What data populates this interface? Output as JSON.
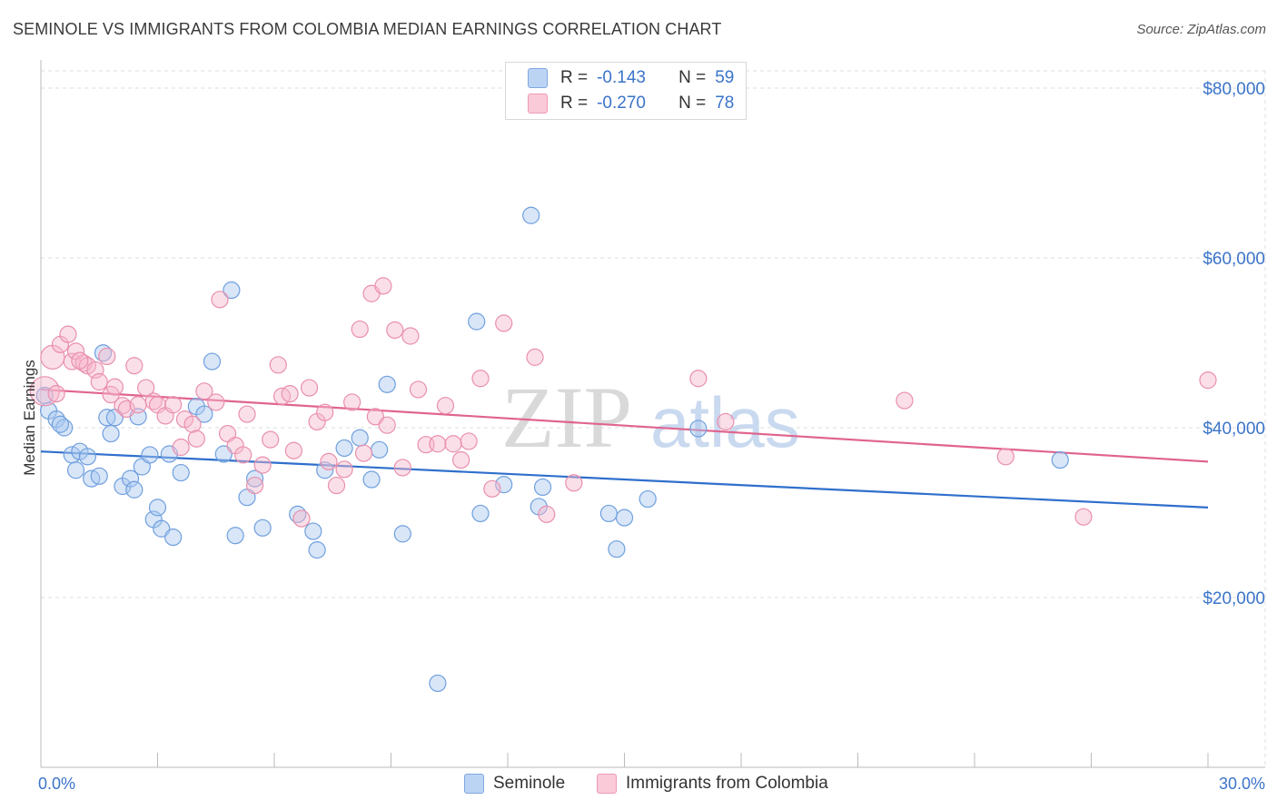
{
  "title": "SEMINOLE VS IMMIGRANTS FROM COLOMBIA MEDIAN EARNINGS CORRELATION CHART",
  "source": "Source: ZipAtlas.com",
  "watermark": {
    "zip": "ZIP",
    "atlas": "atlas"
  },
  "legend_top": {
    "rows": [
      {
        "r_label": "R =",
        "r_value": "-0.143",
        "n_label": "N =",
        "n_value": "59",
        "color": "#a9c8f0"
      },
      {
        "r_label": "R =",
        "r_value": "-0.270",
        "n_label": "N =",
        "n_value": "78",
        "color": "#f7b9cc"
      }
    ]
  },
  "chart_data": {
    "type": "scatter",
    "title": "SEMINOLE VS IMMIGRANTS FROM COLOMBIA MEDIAN EARNINGS CORRELATION CHART",
    "xlabel": "",
    "ylabel": "Median Earnings",
    "xlim": [
      0,
      30
    ],
    "ylim": [
      0,
      85000
    ],
    "x_tick_labels": [
      "0.0%",
      "30.0%"
    ],
    "y_ticks": [
      20000,
      40000,
      60000,
      80000
    ],
    "y_tick_labels": [
      "$20,000",
      "$40,000",
      "$60,000",
      "$80,000"
    ],
    "grid": true,
    "legend_position": "bottom-center",
    "series": [
      {
        "name": "Seminole",
        "color": "#a9c8f0",
        "edge": "#6f9fde",
        "trend_color": "#2f6fcc",
        "trend": [
          [
            0,
            37200
          ],
          [
            30,
            30600
          ]
        ],
        "points": [
          [
            0.1,
            43800
          ],
          [
            0.2,
            42000
          ],
          [
            0.4,
            41000
          ],
          [
            0.6,
            40000
          ],
          [
            0.5,
            40400
          ],
          [
            0.8,
            36800
          ],
          [
            1.0,
            37200
          ],
          [
            0.9,
            35000
          ],
          [
            1.2,
            36600
          ],
          [
            1.3,
            34000
          ],
          [
            1.5,
            34300
          ],
          [
            1.6,
            48800
          ],
          [
            1.7,
            41200
          ],
          [
            1.8,
            39300
          ],
          [
            1.9,
            41200
          ],
          [
            2.1,
            33100
          ],
          [
            2.3,
            34000
          ],
          [
            2.4,
            32700
          ],
          [
            2.5,
            41300
          ],
          [
            2.6,
            35400
          ],
          [
            2.8,
            36800
          ],
          [
            2.9,
            29200
          ],
          [
            3.0,
            30600
          ],
          [
            3.1,
            28100
          ],
          [
            3.3,
            36900
          ],
          [
            3.4,
            27100
          ],
          [
            3.6,
            34700
          ],
          [
            4.0,
            42500
          ],
          [
            4.2,
            41600
          ],
          [
            4.4,
            47800
          ],
          [
            4.7,
            36900
          ],
          [
            4.9,
            56200
          ],
          [
            5.0,
            27300
          ],
          [
            5.3,
            31800
          ],
          [
            5.5,
            34000
          ],
          [
            5.7,
            28200
          ],
          [
            6.6,
            29800
          ],
          [
            7.0,
            27800
          ],
          [
            7.1,
            25600
          ],
          [
            7.3,
            35000
          ],
          [
            7.8,
            37600
          ],
          [
            8.2,
            38800
          ],
          [
            8.5,
            33900
          ],
          [
            8.7,
            37400
          ],
          [
            8.9,
            45100
          ],
          [
            9.3,
            27500
          ],
          [
            10.2,
            9900
          ],
          [
            11.2,
            52500
          ],
          [
            11.3,
            29900
          ],
          [
            11.9,
            33300
          ],
          [
            12.6,
            65000
          ],
          [
            12.8,
            30700
          ],
          [
            12.9,
            33000
          ],
          [
            14.6,
            29900
          ],
          [
            14.8,
            25700
          ],
          [
            15.0,
            29400
          ],
          [
            15.6,
            31600
          ],
          [
            16.9,
            39900
          ],
          [
            26.2,
            36200
          ]
        ]
      },
      {
        "name": "Immigrants from Colombia",
        "color": "#f7b9cc",
        "edge": "#e98fac",
        "trend_color": "#e0648e",
        "trend": [
          [
            0,
            44500
          ],
          [
            30,
            36000
          ]
        ],
        "points": [
          [
            0.1,
            44300
          ],
          [
            0.3,
            48300
          ],
          [
            0.5,
            49800
          ],
          [
            0.7,
            51000
          ],
          [
            0.8,
            47800
          ],
          [
            0.9,
            49000
          ],
          [
            1.1,
            47600
          ],
          [
            1.2,
            47300
          ],
          [
            1.4,
            46800
          ],
          [
            1.5,
            45400
          ],
          [
            1.7,
            48400
          ],
          [
            1.8,
            43900
          ],
          [
            1.9,
            44800
          ],
          [
            2.1,
            42600
          ],
          [
            2.2,
            42200
          ],
          [
            2.4,
            47300
          ],
          [
            2.5,
            42700
          ],
          [
            2.7,
            44700
          ],
          [
            2.9,
            43100
          ],
          [
            3.0,
            42700
          ],
          [
            3.2,
            41400
          ],
          [
            3.4,
            42700
          ],
          [
            3.6,
            37700
          ],
          [
            3.7,
            41000
          ],
          [
            3.9,
            40400
          ],
          [
            4.0,
            38700
          ],
          [
            4.2,
            44300
          ],
          [
            4.5,
            43000
          ],
          [
            4.6,
            55100
          ],
          [
            4.8,
            39300
          ],
          [
            5.0,
            37900
          ],
          [
            5.2,
            36800
          ],
          [
            5.3,
            41600
          ],
          [
            5.5,
            33200
          ],
          [
            5.7,
            35600
          ],
          [
            5.9,
            38600
          ],
          [
            6.1,
            47400
          ],
          [
            6.2,
            43700
          ],
          [
            6.4,
            44000
          ],
          [
            6.5,
            37300
          ],
          [
            6.7,
            29300
          ],
          [
            6.9,
            44700
          ],
          [
            7.1,
            40700
          ],
          [
            7.3,
            41800
          ],
          [
            7.4,
            36000
          ],
          [
            7.6,
            33200
          ],
          [
            7.8,
            35100
          ],
          [
            8.0,
            43000
          ],
          [
            8.2,
            51600
          ],
          [
            8.3,
            37000
          ],
          [
            8.5,
            55800
          ],
          [
            8.6,
            41300
          ],
          [
            8.8,
            56700
          ],
          [
            8.9,
            40300
          ],
          [
            9.1,
            51500
          ],
          [
            9.3,
            35300
          ],
          [
            9.5,
            50800
          ],
          [
            9.7,
            44500
          ],
          [
            9.9,
            38000
          ],
          [
            10.2,
            38100
          ],
          [
            10.4,
            42600
          ],
          [
            10.6,
            38100
          ],
          [
            10.8,
            36200
          ],
          [
            11.0,
            38400
          ],
          [
            11.3,
            45800
          ],
          [
            11.6,
            32800
          ],
          [
            11.9,
            52300
          ],
          [
            12.7,
            48300
          ],
          [
            13.0,
            29800
          ],
          [
            13.7,
            33500
          ],
          [
            16.9,
            45800
          ],
          [
            17.6,
            40700
          ],
          [
            22.2,
            43200
          ],
          [
            24.8,
            36600
          ],
          [
            26.8,
            29500
          ],
          [
            30.0,
            45600
          ],
          [
            0.4,
            44000
          ],
          [
            1.0,
            47900
          ]
        ]
      }
    ]
  }
}
